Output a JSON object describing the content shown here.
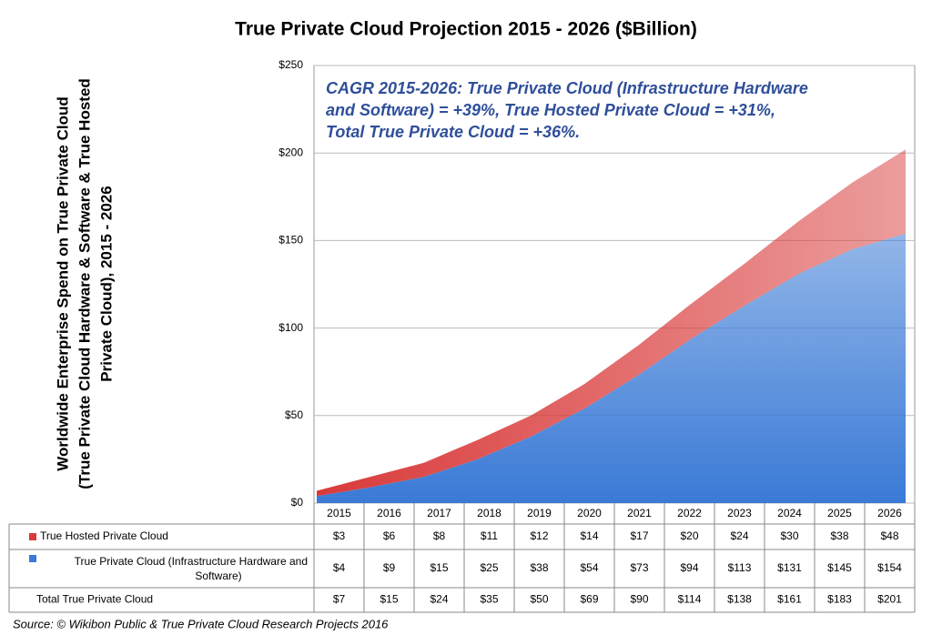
{
  "chart_data": {
    "type": "stacked_area",
    "title": "True Private Cloud Projection 2015 - 2026 ($Billion)",
    "y_label": [
      "Worldwide Enterprise Spend on True Private Cloud",
      "(True Private Cloud Hardware & Software & True Hosted",
      "Private Cloud), 2015 - 2026"
    ],
    "annotation": [
      "CAGR 2015-2026: True Private Cloud (Infrastructure Hardware",
      "and Software) = +39%, True Hosted Private Cloud = +31%,",
      "Total True Private Cloud = +36%."
    ],
    "source": "Source: © Wikibon Public & True Private Cloud Research Projects 2016",
    "categories": [
      "2015",
      "2016",
      "2017",
      "2018",
      "2019",
      "2020",
      "2021",
      "2022",
      "2023",
      "2024",
      "2025",
      "2026"
    ],
    "series": [
      {
        "name": "True Hosted Private Cloud",
        "color": "#d93a3a",
        "values": [
          3,
          6,
          8,
          11,
          12,
          14,
          17,
          20,
          24,
          30,
          38,
          48
        ],
        "value_labels": [
          "$3",
          "$6",
          "$8",
          "$11",
          "$12",
          "$14",
          "$17",
          "$20",
          "$24",
          "$30",
          "$38",
          "$48"
        ]
      },
      {
        "name": "True Private Cloud (Infrastructure Hardware and Software)",
        "color": "#3a7ad6",
        "values": [
          4,
          9,
          15,
          25,
          38,
          54,
          73,
          94,
          113,
          131,
          145,
          154
        ],
        "value_labels": [
          "$4",
          "$9",
          "$15",
          "$25",
          "$38",
          "$54",
          "$73",
          "$94",
          "$113",
          "$131",
          "$145",
          "$154"
        ]
      }
    ],
    "totals": {
      "name": "Total True Private Cloud",
      "values": [
        7,
        15,
        24,
        35,
        50,
        69,
        90,
        114,
        138,
        161,
        183,
        201
      ],
      "value_labels": [
        "$7",
        "$15",
        "$24",
        "$35",
        "$50",
        "$69",
        "$90",
        "$114",
        "$138",
        "$161",
        "$183",
        "$201"
      ]
    },
    "ylim": [
      0,
      250
    ],
    "yticks": [
      {
        "value": 0,
        "label": "$0"
      },
      {
        "value": 50,
        "label": "$50"
      },
      {
        "value": 100,
        "label": "$100"
      },
      {
        "value": 150,
        "label": "$150"
      },
      {
        "value": 200,
        "label": "$200"
      },
      {
        "value": 250,
        "label": "$250"
      }
    ],
    "grid": true
  }
}
